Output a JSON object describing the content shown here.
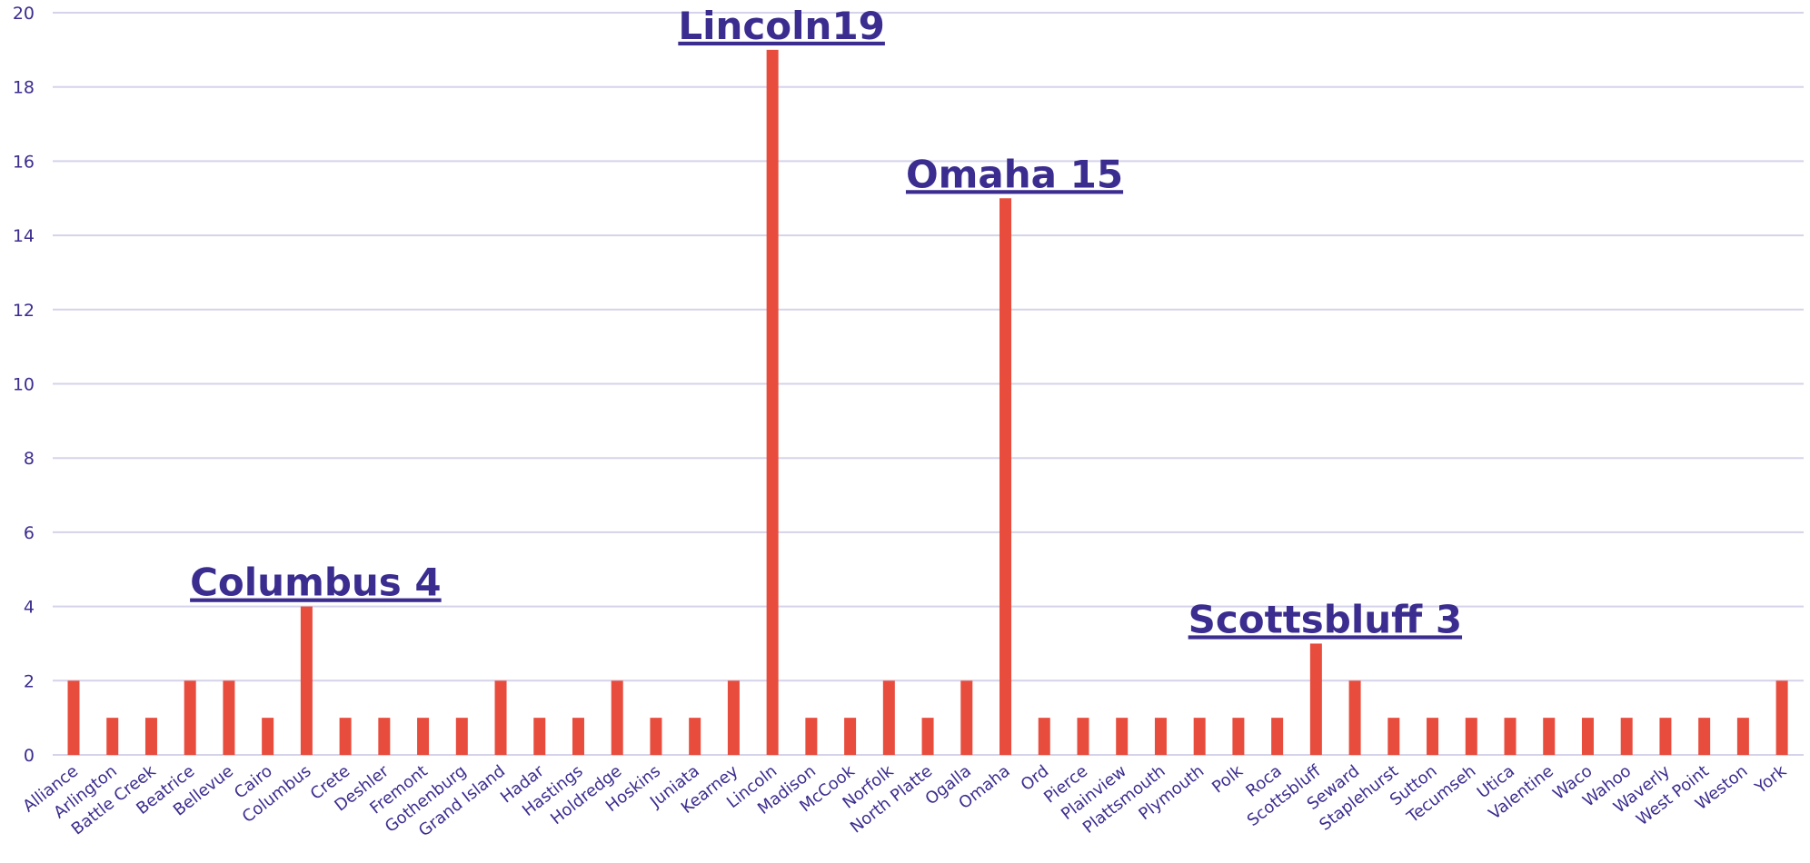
{
  "chart_data": {
    "type": "bar",
    "categories": [
      "Alliance",
      "Arlington",
      "Battle Creek",
      "Beatrice",
      "Bellevue",
      "Cairo",
      "Columbus",
      "Crete",
      "Deshler",
      "Fremont",
      "Gothenburg",
      "Grand Island",
      "Hadar",
      "Hastings",
      "Holdredge",
      "Hoskins",
      "Juniata",
      "Kearney",
      "Lincoln",
      "Madison",
      "McCook",
      "Norfolk",
      "North Platte",
      "Ogalla",
      "Omaha",
      "Ord",
      "Pierce",
      "Plainview",
      "Plattsmouth",
      "Plymouth",
      "Polk",
      "Roca",
      "Scottsbluff",
      "Seward",
      "Staplehurst",
      "Sutton",
      "Tecumseh",
      "Utica",
      "Valentine",
      "Waco",
      "Wahoo",
      "Waverly",
      "West Point",
      "Weston",
      "York"
    ],
    "values": [
      2,
      1,
      1,
      2,
      2,
      1,
      4,
      1,
      1,
      1,
      1,
      2,
      1,
      1,
      2,
      1,
      1,
      2,
      19,
      1,
      1,
      2,
      1,
      2,
      15,
      1,
      1,
      1,
      1,
      1,
      1,
      1,
      3,
      2,
      1,
      1,
      1,
      1,
      1,
      1,
      1,
      1,
      1,
      1,
      2
    ],
    "ylim": [
      0,
      20
    ],
    "yticks": [
      0,
      2,
      4,
      6,
      8,
      10,
      12,
      14,
      16,
      18,
      20
    ],
    "grid": true,
    "legend": "none",
    "annotations": [
      {
        "text": "Columbus 4",
        "category": "Columbus"
      },
      {
        "text": "Lincoln19",
        "category": "Lincoln"
      },
      {
        "text": "Omaha 15",
        "category": "Omaha"
      },
      {
        "text": "Scottsbluff 3",
        "category": "Scottsbluff"
      }
    ],
    "colors": {
      "bar": "#e84c3d",
      "text": "#3b2d8f",
      "grid": "#d5d3ea"
    }
  }
}
